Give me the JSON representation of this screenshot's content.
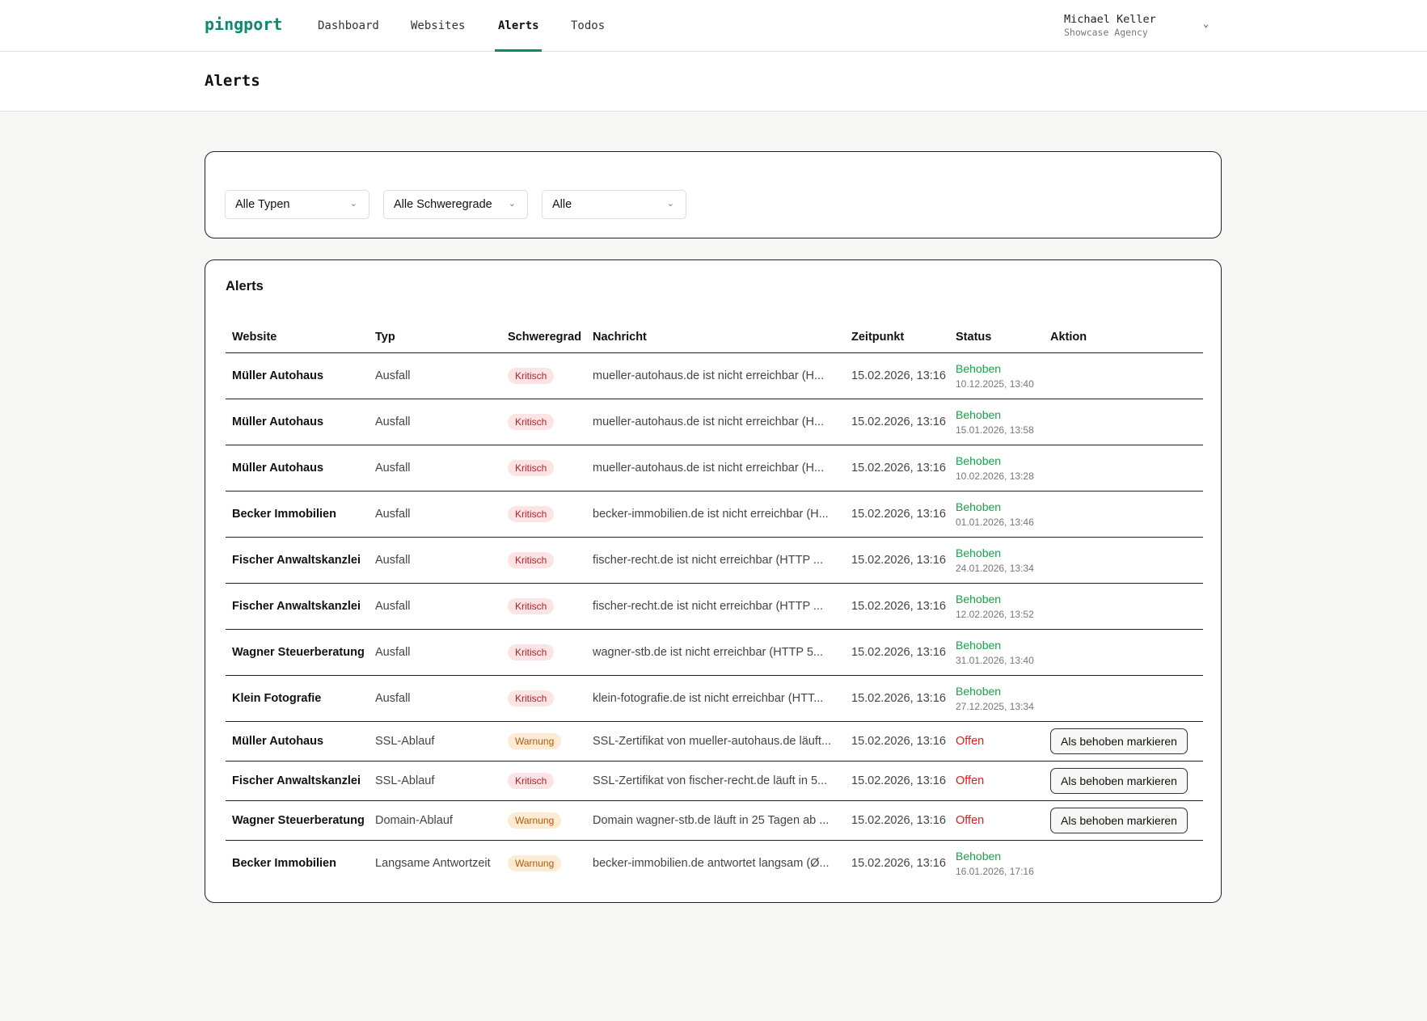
{
  "nav": {
    "logo": "pingport",
    "items": [
      "Dashboard",
      "Websites",
      "Alerts",
      "Todos"
    ],
    "active": "Alerts",
    "user_name": "Michael Keller",
    "user_org": "Showcase Agency"
  },
  "page_title": "Alerts",
  "filters": [
    "Alle Typen",
    "Alle Schweregrade",
    "Alle"
  ],
  "table": {
    "title": "Alerts",
    "columns": [
      "Website",
      "Typ",
      "Schweregrad",
      "Nachricht",
      "Zeitpunkt",
      "Status",
      "Aktion"
    ],
    "action_label": "Als behoben markieren",
    "rows": [
      {
        "website": "Müller Autohaus",
        "type": "Ausfall",
        "severity": "Kritisch",
        "message": "mueller-autohaus.de ist nicht erreichbar (H...",
        "time": "15.02.2026, 13:16",
        "status": "Behoben",
        "resolved": "10.12.2025, 13:40"
      },
      {
        "website": "Müller Autohaus",
        "type": "Ausfall",
        "severity": "Kritisch",
        "message": "mueller-autohaus.de ist nicht erreichbar (H...",
        "time": "15.02.2026, 13:16",
        "status": "Behoben",
        "resolved": "15.01.2026, 13:58"
      },
      {
        "website": "Müller Autohaus",
        "type": "Ausfall",
        "severity": "Kritisch",
        "message": "mueller-autohaus.de ist nicht erreichbar (H...",
        "time": "15.02.2026, 13:16",
        "status": "Behoben",
        "resolved": "10.02.2026, 13:28"
      },
      {
        "website": "Becker Immobilien",
        "type": "Ausfall",
        "severity": "Kritisch",
        "message": "becker-immobilien.de ist nicht erreichbar (H...",
        "time": "15.02.2026, 13:16",
        "status": "Behoben",
        "resolved": "01.01.2026, 13:46"
      },
      {
        "website": "Fischer Anwaltskanzlei",
        "type": "Ausfall",
        "severity": "Kritisch",
        "message": "fischer-recht.de ist nicht erreichbar (HTTP ...",
        "time": "15.02.2026, 13:16",
        "status": "Behoben",
        "resolved": "24.01.2026, 13:34"
      },
      {
        "website": "Fischer Anwaltskanzlei",
        "type": "Ausfall",
        "severity": "Kritisch",
        "message": "fischer-recht.de ist nicht erreichbar (HTTP ...",
        "time": "15.02.2026, 13:16",
        "status": "Behoben",
        "resolved": "12.02.2026, 13:52"
      },
      {
        "website": "Wagner Steuerberatung",
        "type": "Ausfall",
        "severity": "Kritisch",
        "message": "wagner-stb.de ist nicht erreichbar (HTTP 5...",
        "time": "15.02.2026, 13:16",
        "status": "Behoben",
        "resolved": "31.01.2026, 13:40"
      },
      {
        "website": "Klein Fotografie",
        "type": "Ausfall",
        "severity": "Kritisch",
        "message": "klein-fotografie.de ist nicht erreichbar (HTT...",
        "time": "15.02.2026, 13:16",
        "status": "Behoben",
        "resolved": "27.12.2025, 13:34"
      },
      {
        "website": "Müller Autohaus",
        "type": "SSL-Ablauf",
        "severity": "Warnung",
        "message": "SSL-Zertifikat von mueller-autohaus.de läuft...",
        "time": "15.02.2026, 13:16",
        "status": "Offen"
      },
      {
        "website": "Fischer Anwaltskanzlei",
        "type": "SSL-Ablauf",
        "severity": "Kritisch",
        "message": "SSL-Zertifikat von fischer-recht.de läuft in 5...",
        "time": "15.02.2026, 13:16",
        "status": "Offen"
      },
      {
        "website": "Wagner Steuerberatung",
        "type": "Domain-Ablauf",
        "severity": "Warnung",
        "message": "Domain wagner-stb.de läuft in 25 Tagen ab ...",
        "time": "15.02.2026, 13:16",
        "status": "Offen"
      },
      {
        "website": "Becker Immobilien",
        "type": "Langsame Antwortzeit",
        "severity": "Warnung",
        "message": "becker-immobilien.de antwortet langsam (Ø...",
        "time": "15.02.2026, 13:16",
        "status": "Behoben",
        "resolved": "16.01.2026, 17:16"
      }
    ]
  },
  "colors": {
    "brand": "#0d8a6c",
    "resolved": "#16a34a",
    "open": "#e11d1d",
    "critical_bg": "#fde4e4",
    "warning_bg": "#fdebd3"
  }
}
